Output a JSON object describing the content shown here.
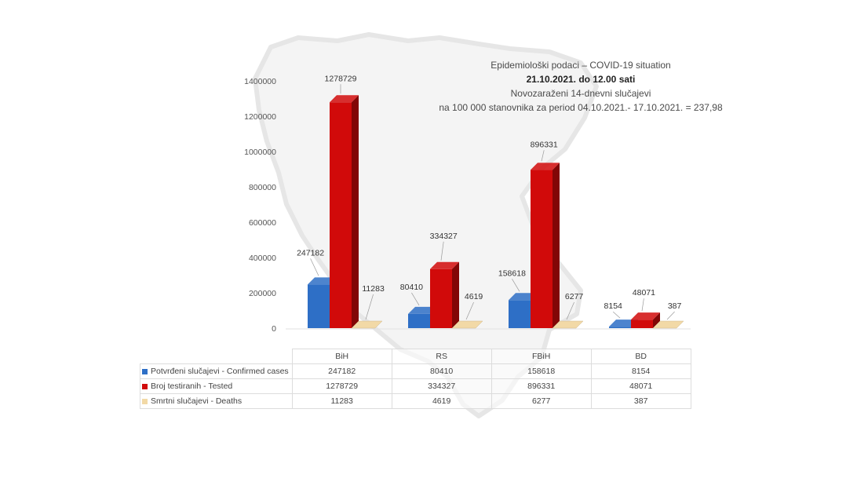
{
  "chart_data": {
    "type": "bar",
    "title_lines": [
      "Epidemiološki podaci – COVID-19 situation",
      "21.10.2021. do 12.00 sati",
      "Novozaraženi 14-dnevni slučajevi",
      "na 100 000 stanovnika za period 04.10.2021.- 17.10.2021. = 237,98"
    ],
    "categories": [
      "BiH",
      "RS",
      "FBiH",
      "BD"
    ],
    "series": [
      {
        "name": "Potvrđeni slučajevi - Confirmed cases",
        "values": [
          247182,
          80410,
          158618,
          8154
        ],
        "color": "#2e6fc6"
      },
      {
        "name": "Broj testiranih - Tested",
        "values": [
          1278729,
          334327,
          896331,
          48071
        ],
        "color": "#d10a0a"
      },
      {
        "name": "Smrtni slučajevi - Deaths",
        "values": [
          11283,
          4619,
          6277,
          387
        ],
        "color": "#f2d9a6"
      }
    ],
    "y_ticks": [
      "0",
      "200000",
      "400000",
      "600000",
      "800000",
      "1000000",
      "1200000",
      "1400000"
    ],
    "ylim": [
      0,
      1400000
    ],
    "legend": "data table below chart",
    "grid": false
  }
}
